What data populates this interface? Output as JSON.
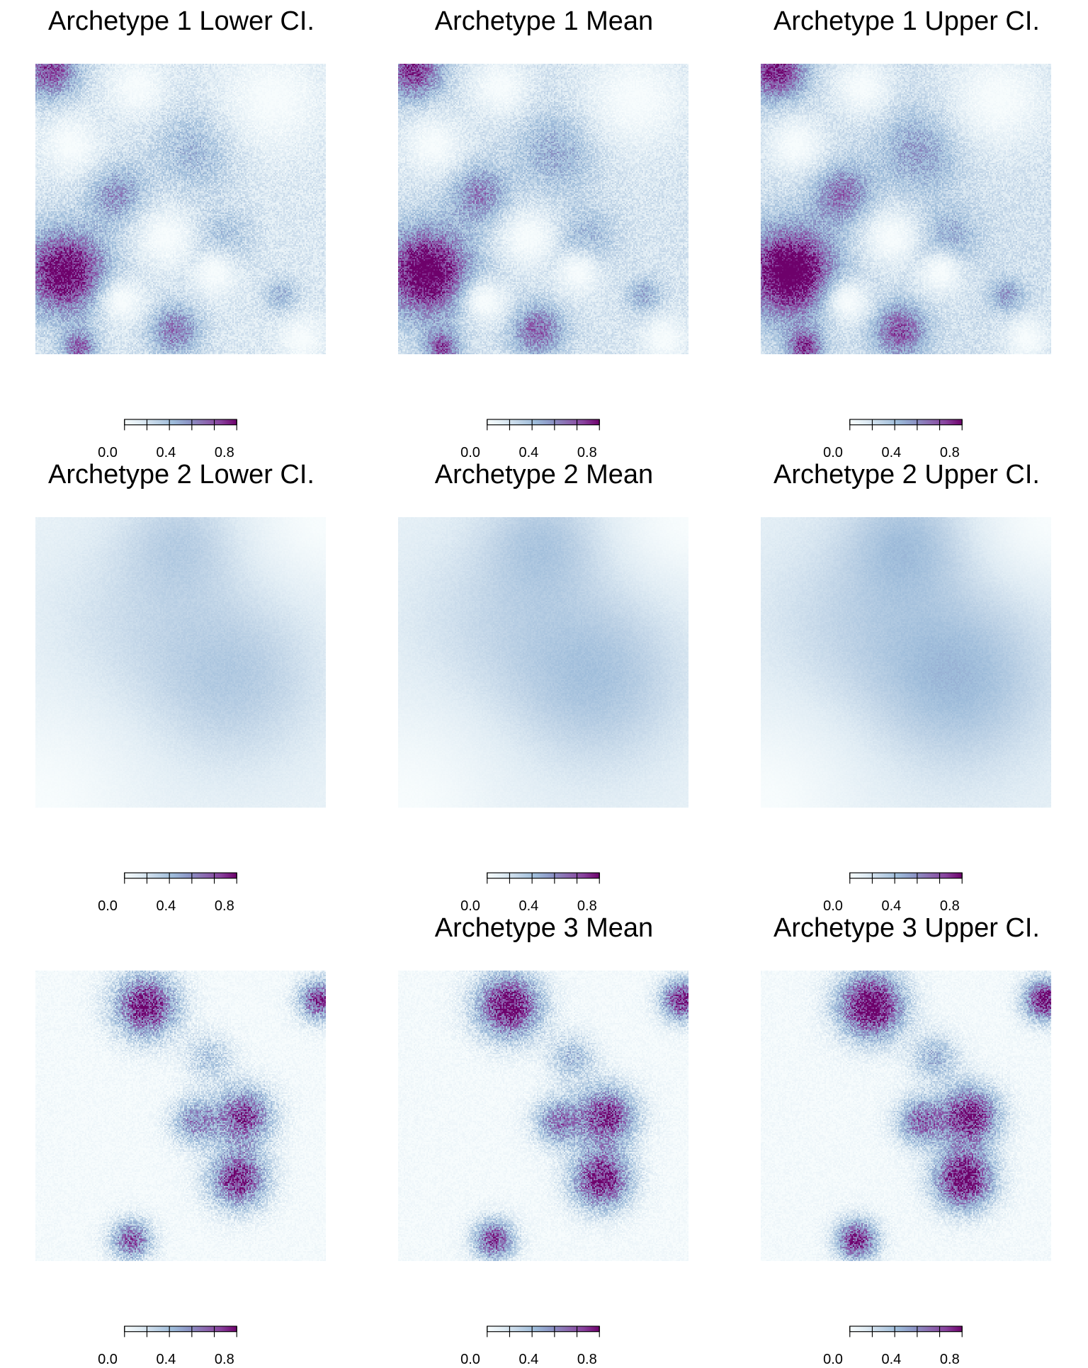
{
  "figure": {
    "colormap": [
      "#f7fcfd",
      "#e0ecf4",
      "#bfd3e6",
      "#9ebcda",
      "#8c96c6",
      "#8c6bb1",
      "#88419d",
      "#6e016b"
    ],
    "colorbar": {
      "min": 0.0,
      "max": 1.0,
      "tick_values": [
        0.0,
        0.2,
        0.4,
        0.6,
        0.8,
        1.0
      ],
      "tick_labels": [
        "0.0",
        "0.4",
        "0.8"
      ]
    },
    "panels": [
      {
        "title": "Archetype 1 Lower CI.",
        "archetype": 1,
        "statistic": "lower"
      },
      {
        "title": "Archetype 1 Mean",
        "archetype": 1,
        "statistic": "mean"
      },
      {
        "title": "Archetype 1 Upper CI.",
        "archetype": 1,
        "statistic": "upper"
      },
      {
        "title": "Archetype 2 Lower CI.",
        "archetype": 2,
        "statistic": "lower"
      },
      {
        "title": "Archetype 2 Mean",
        "archetype": 2,
        "statistic": "mean"
      },
      {
        "title": "Archetype 2 Upper CI.",
        "archetype": 2,
        "statistic": "upper"
      },
      {
        "title": "",
        "archetype": 3,
        "statistic": "lower"
      },
      {
        "title": "Archetype 3 Mean",
        "archetype": 3,
        "statistic": "mean"
      },
      {
        "title": "Archetype 3 Upper CI.",
        "archetype": 3,
        "statistic": "upper"
      }
    ]
  },
  "chart_data": {
    "type": "heatmap",
    "grid": "3 rows x 3 columns",
    "value_range": [
      0,
      1
    ],
    "archetypes": [
      {
        "archetype": 1,
        "baseline": 0.18,
        "noise": 0.22,
        "blobs": [
          {
            "cx": 0.1,
            "cy": 0.72,
            "r": 0.15,
            "amp": 0.95
          },
          {
            "cx": 0.05,
            "cy": 0.02,
            "r": 0.1,
            "amp": 0.7
          },
          {
            "cx": 0.28,
            "cy": 0.45,
            "r": 0.1,
            "amp": 0.45
          },
          {
            "cx": 0.48,
            "cy": 0.92,
            "r": 0.09,
            "amp": 0.55
          },
          {
            "cx": 0.15,
            "cy": 0.98,
            "r": 0.06,
            "amp": 0.6
          },
          {
            "cx": 0.55,
            "cy": 0.3,
            "r": 0.14,
            "amp": 0.3
          },
          {
            "cx": 0.85,
            "cy": 0.8,
            "r": 0.06,
            "amp": 0.3
          },
          {
            "cx": 0.65,
            "cy": 0.6,
            "r": 0.1,
            "amp": 0.25
          }
        ],
        "holes": [
          {
            "cx": 0.12,
            "cy": 0.28,
            "r": 0.1
          },
          {
            "cx": 0.35,
            "cy": 0.08,
            "r": 0.1
          },
          {
            "cx": 0.82,
            "cy": 0.12,
            "r": 0.18
          },
          {
            "cx": 0.45,
            "cy": 0.6,
            "r": 0.1
          },
          {
            "cx": 0.62,
            "cy": 0.72,
            "r": 0.08
          },
          {
            "cx": 0.92,
            "cy": 0.95,
            "r": 0.08
          },
          {
            "cx": 0.3,
            "cy": 0.82,
            "r": 0.08
          }
        ]
      },
      {
        "archetype": 2,
        "baseline": 0.1,
        "noise": 0.05,
        "blobs": [
          {
            "cx": 0.68,
            "cy": 0.55,
            "r": 0.3,
            "amp": 0.28
          },
          {
            "cx": 0.5,
            "cy": 0.08,
            "r": 0.2,
            "amp": 0.22
          },
          {
            "cx": 0.3,
            "cy": 0.35,
            "r": 0.3,
            "amp": 0.12
          }
        ],
        "holes": [
          {
            "cx": 0.0,
            "cy": 1.0,
            "r": 0.3
          },
          {
            "cx": 1.0,
            "cy": 0.0,
            "r": 0.2
          }
        ]
      },
      {
        "archetype": 3,
        "baseline": 0.02,
        "noise": 0.3,
        "blobs": [
          {
            "cx": 0.38,
            "cy": 0.12,
            "r": 0.11,
            "amp": 1.0
          },
          {
            "cx": 0.72,
            "cy": 0.5,
            "r": 0.1,
            "amp": 0.85
          },
          {
            "cx": 0.7,
            "cy": 0.72,
            "r": 0.1,
            "amp": 0.95
          },
          {
            "cx": 0.55,
            "cy": 0.52,
            "r": 0.08,
            "amp": 0.6
          },
          {
            "cx": 0.98,
            "cy": 0.1,
            "r": 0.07,
            "amp": 0.9
          },
          {
            "cx": 0.33,
            "cy": 0.93,
            "r": 0.07,
            "amp": 0.8
          },
          {
            "cx": 0.6,
            "cy": 0.3,
            "r": 0.08,
            "amp": 0.35
          }
        ],
        "holes": []
      }
    ],
    "statistic_shift": {
      "lower": -0.06,
      "mean": 0.0,
      "upper": 0.06
    }
  }
}
